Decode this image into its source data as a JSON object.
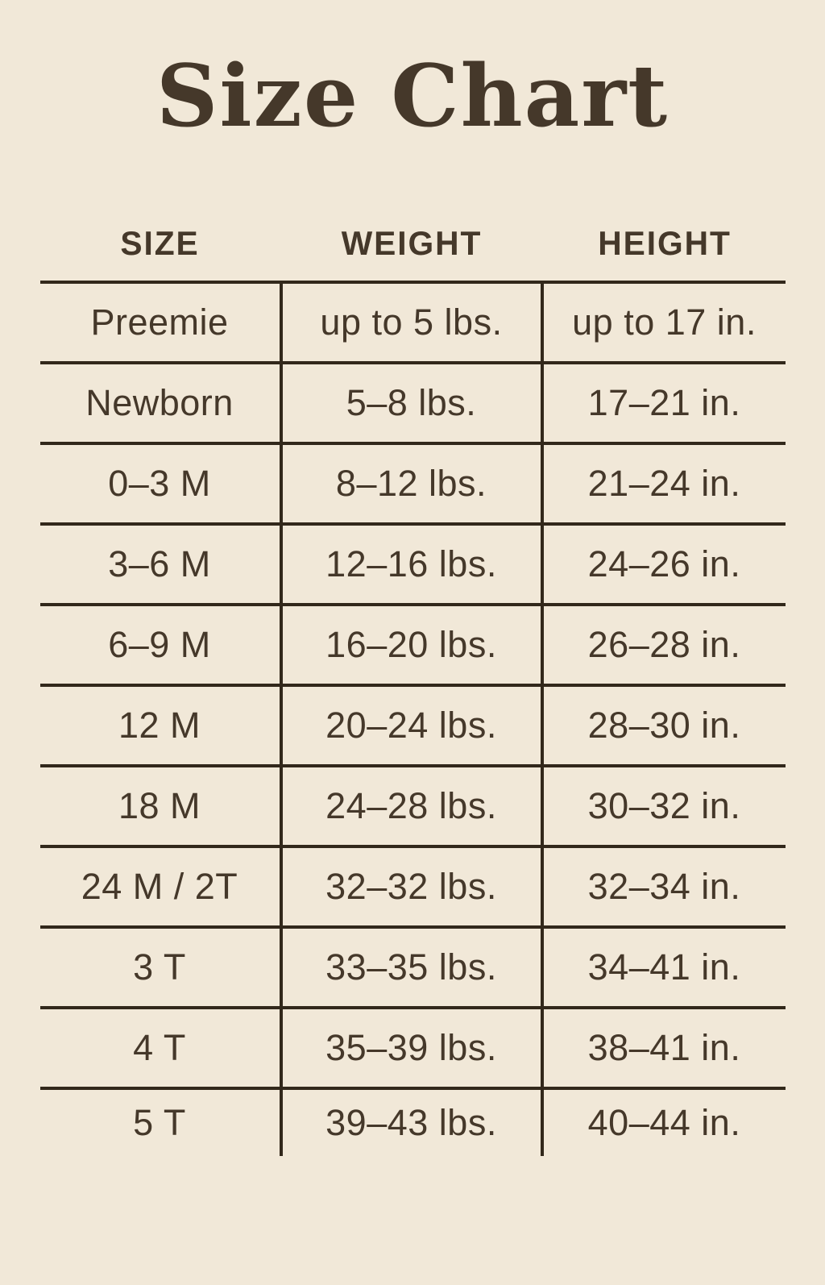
{
  "chart_data": {
    "type": "table",
    "title": "Size Chart",
    "columns": [
      "SIZE",
      "WEIGHT",
      "HEIGHT"
    ],
    "rows": [
      [
        "Preemie",
        "up to 5 lbs.",
        "up to 17 in."
      ],
      [
        "Newborn",
        "5–8 lbs.",
        "17–21 in."
      ],
      [
        "0–3 M",
        "8–12 lbs.",
        "21–24 in."
      ],
      [
        "3–6 M",
        "12–16 lbs.",
        "24–26 in."
      ],
      [
        "6–9 M",
        "16–20 lbs.",
        "26–28 in."
      ],
      [
        "12 M",
        "20–24 lbs.",
        "28–30 in."
      ],
      [
        "18 M",
        "24–28 lbs.",
        "30–32 in."
      ],
      [
        "24 M / 2T",
        "32–32 lbs.",
        "32–34 in."
      ],
      [
        "3 T",
        "33–35 lbs.",
        "34–41 in."
      ],
      [
        "4 T",
        "35–39 lbs.",
        "38–41 in."
      ],
      [
        "5 T",
        "39–43 lbs.",
        "40–44 in."
      ]
    ],
    "layout": {
      "grid": "horizontal-and-vertical-rules",
      "legend": "none",
      "bottom_border": false
    }
  },
  "colors": {
    "background": "#f1e8d8",
    "text": "#45382a",
    "line": "#32281b"
  }
}
